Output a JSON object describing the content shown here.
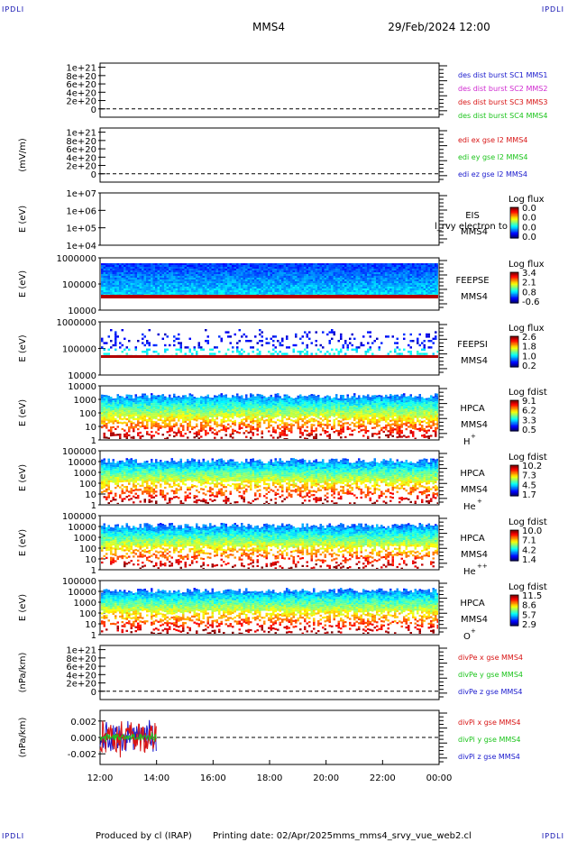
{
  "header": {
    "corner_label": "IPDLI",
    "spacecraft": "MMS4",
    "datetime": "29/Feb/2024 12:00"
  },
  "footer": {
    "produced_by": "Produced by cl (IRAP)",
    "printing_date": "Printing date: 02/Apr/2025",
    "script_name": "mms_mms4_srvy_vue_web2.cl"
  },
  "colors": {
    "axis": "#000000",
    "blue": "#1a1acd",
    "magenta": "#d02ad0",
    "red": "#d81515",
    "green": "#1cc41c"
  },
  "chart_data": [
    {
      "type": "line",
      "panel": "des-dist",
      "ylabel": "",
      "yticks": [
        "1e+21",
        "8e+20",
        "6e+20",
        "4e+20",
        "2e+20",
        "0"
      ],
      "ylim": [
        -2e+20,
        1.1e+21
      ],
      "zero_line": true,
      "legend": [
        {
          "text": "des dist burst SC1 MMS1",
          "color": "#1a1acd"
        },
        {
          "text": "des dist burst SC2 MMS2",
          "color": "#d02ad0"
        },
        {
          "text": "des dist burst SC3 MMS3",
          "color": "#d81515"
        },
        {
          "text": "des dist burst SC4 MMS4",
          "color": "#1cc41c"
        }
      ],
      "series": []
    },
    {
      "type": "line",
      "panel": "edi-e",
      "ylabel": "(mV/m)",
      "yticks": [
        "1e+21",
        "8e+20",
        "6e+20",
        "4e+20",
        "2e+20",
        "0"
      ],
      "ylim": [
        -2e+20,
        1.1e+21
      ],
      "zero_line": true,
      "legend": [
        {
          "text": "edi ex gse l2 MMS4",
          "color": "#d81515"
        },
        {
          "text": "edi ey gse l2 MMS4",
          "color": "#1cc41c"
        },
        {
          "text": "edi ez gse l2 MMS4",
          "color": "#1a1acd"
        }
      ],
      "series": []
    },
    {
      "type": "heatmap",
      "panel": "eis",
      "ylabel": "E (eV)",
      "yticks": [
        "1e+07",
        "1e+06",
        "1e+05",
        "1e+04"
      ],
      "instrument": [
        "EIS",
        "MMS4"
      ],
      "overlay_text": "l_rvy electron to",
      "colorbar": {
        "title": "Log flux",
        "ticks": [
          "0.0",
          "0.0",
          "0.0",
          "0.0"
        ]
      },
      "density": 0,
      "band": "none"
    },
    {
      "type": "heatmap",
      "panel": "feeps-e",
      "ylabel": "E (eV)",
      "yticks": [
        "1000000",
        "100000",
        "10000"
      ],
      "instrument": [
        "FEEPSE",
        "MMS4"
      ],
      "colorbar": {
        "title": "Log flux",
        "ticks": [
          "3.4",
          "2.1",
          "0.8",
          "-0.6"
        ]
      },
      "density": 1.0,
      "band": "solid-low"
    },
    {
      "type": "heatmap",
      "panel": "feeps-i",
      "ylabel": "E (eV)",
      "yticks": [
        "1000000",
        "100000",
        "10000"
      ],
      "instrument": [
        "FEEPSI",
        "MMS4"
      ],
      "colorbar": {
        "title": "Log flux",
        "ticks": [
          "2.6",
          "1.8",
          "1.0",
          "0.2"
        ]
      },
      "density": 0.45,
      "band": "line-low"
    },
    {
      "type": "heatmap",
      "panel": "hpca-h",
      "ylabel": "E (eV)",
      "yticks": [
        "10000",
        "1000",
        "100",
        "10",
        "1"
      ],
      "instrument": [
        "HPCA",
        "MMS4",
        "H",
        "+"
      ],
      "colorbar": {
        "title": "Log fdist",
        "ticks": [
          "9.1",
          "6.2",
          "3.3",
          "0.5"
        ]
      },
      "density": 0.95,
      "band": "ions"
    },
    {
      "type": "heatmap",
      "panel": "hpca-he1",
      "ylabel": "E (eV)",
      "yticks": [
        "100000",
        "10000",
        "1000",
        "100",
        "10",
        "1"
      ],
      "instrument": [
        "HPCA",
        "MMS4",
        "He",
        "+"
      ],
      "colorbar": {
        "title": "Log fdist",
        "ticks": [
          "10.2",
          "7.3",
          "4.5",
          "1.7"
        ]
      },
      "density": 0.75,
      "band": "ions"
    },
    {
      "type": "heatmap",
      "panel": "hpca-he2",
      "ylabel": "E (eV)",
      "yticks": [
        "100000",
        "10000",
        "1000",
        "100",
        "10",
        "1"
      ],
      "instrument": [
        "HPCA",
        "MMS4",
        "He",
        "++"
      ],
      "colorbar": {
        "title": "Log fdist",
        "ticks": [
          "10.0",
          "7.1",
          "4.2",
          "1.4"
        ]
      },
      "density": 0.7,
      "band": "ions"
    },
    {
      "type": "heatmap",
      "panel": "hpca-o",
      "ylabel": "E (eV)",
      "yticks": [
        "100000",
        "10000",
        "1000",
        "100",
        "10",
        "1"
      ],
      "instrument": [
        "HPCA",
        "MMS4",
        "O",
        "+"
      ],
      "colorbar": {
        "title": "Log fdist",
        "ticks": [
          "11.5",
          "8.6",
          "5.7",
          "2.9"
        ]
      },
      "density": 0.8,
      "band": "ions"
    },
    {
      "type": "line",
      "panel": "divpe",
      "ylabel": "(nPa/km)",
      "yticks": [
        "1e+21",
        "8e+20",
        "6e+20",
        "4e+20",
        "2e+20",
        "0"
      ],
      "ylim": [
        -2e+20,
        1.1e+21
      ],
      "zero_line": true,
      "legend": [
        {
          "text": "divPe x gse MMS4",
          "color": "#d81515"
        },
        {
          "text": "divPe y gse MMS4",
          "color": "#1cc41c"
        },
        {
          "text": "divPe z gse MMS4",
          "color": "#1a1acd"
        }
      ],
      "series": []
    },
    {
      "type": "line",
      "panel": "divpi",
      "ylabel": "(nPa/km)",
      "yticks": [
        "0.002",
        "0.000",
        "-0.002"
      ],
      "ylim": [
        -0.0033,
        0.0033
      ],
      "zero_line": true,
      "legend": [
        {
          "text": "divPi x gse MMS4",
          "color": "#d81515"
        },
        {
          "text": "divPi y gse MMS4",
          "color": "#1cc41c"
        },
        {
          "text": "divPi z gse MMS4",
          "color": "#1a1acd"
        }
      ],
      "series": [
        {
          "color": "#1a1acd",
          "x_range": [
            12.0,
            14.0
          ],
          "amplitude": 0.0025,
          "offset": 0.0002
        },
        {
          "color": "#d81515",
          "x_range": [
            12.0,
            14.0
          ],
          "amplitude": 0.0028,
          "offset": 0.0
        },
        {
          "color": "#1cc41c",
          "x_range": [
            12.0,
            14.0
          ],
          "amplitude": 0.0006,
          "offset": 0.0
        }
      ]
    }
  ],
  "time_axis": {
    "ticks": [
      "12:00",
      "14:00",
      "16:00",
      "18:00",
      "20:00",
      "22:00",
      "00:00"
    ],
    "range_hours": [
      12,
      24
    ]
  }
}
